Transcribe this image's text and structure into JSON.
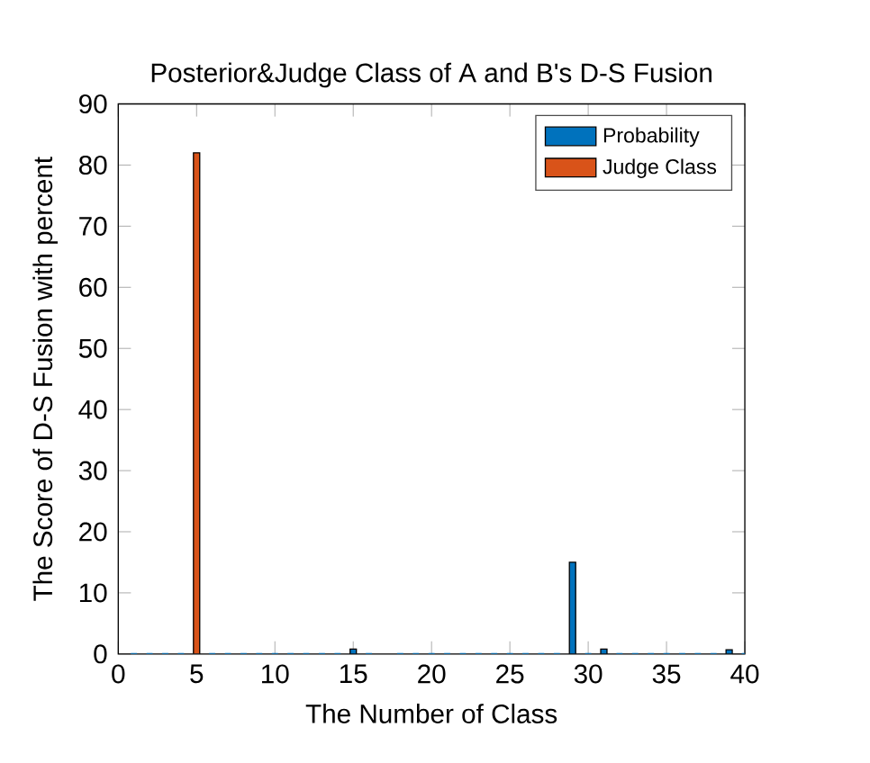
{
  "chart_data": {
    "type": "bar",
    "title": "Posterior&Judge Class of A and B's D-S Fusion",
    "xlabel": "The Number of Class",
    "ylabel": "The Score of D-S Fusion with percent",
    "series": [
      {
        "name": "Probability",
        "color": "#0072bd",
        "x": [
          1,
          2,
          3,
          4,
          5,
          6,
          7,
          8,
          9,
          10,
          11,
          12,
          13,
          14,
          15,
          16,
          17,
          18,
          19,
          20,
          21,
          22,
          23,
          24,
          25,
          26,
          27,
          28,
          29,
          30,
          31,
          32,
          33,
          34,
          35,
          36,
          37,
          38,
          39,
          40
        ],
        "values": [
          0,
          0,
          0,
          0,
          0,
          0,
          0,
          0,
          0,
          0,
          0,
          0,
          0,
          0,
          0.8,
          0,
          null,
          0,
          0,
          0,
          0,
          0,
          0,
          0,
          0,
          0,
          0,
          0,
          15,
          0,
          0.8,
          0,
          0,
          0,
          0,
          0,
          0,
          0,
          0.7,
          0
        ]
      },
      {
        "name": "Judge Class",
        "color": "#d95319",
        "x": [
          5
        ],
        "values": [
          82
        ]
      }
    ],
    "xlim": [
      0,
      40
    ],
    "xticks": [
      0,
      5,
      10,
      15,
      20,
      25,
      30,
      35,
      40
    ],
    "ylim": [
      0,
      90
    ],
    "yticks": [
      0,
      10,
      20,
      30,
      40,
      50,
      60,
      70,
      80,
      90
    ],
    "legend": "top right",
    "grid": false
  }
}
